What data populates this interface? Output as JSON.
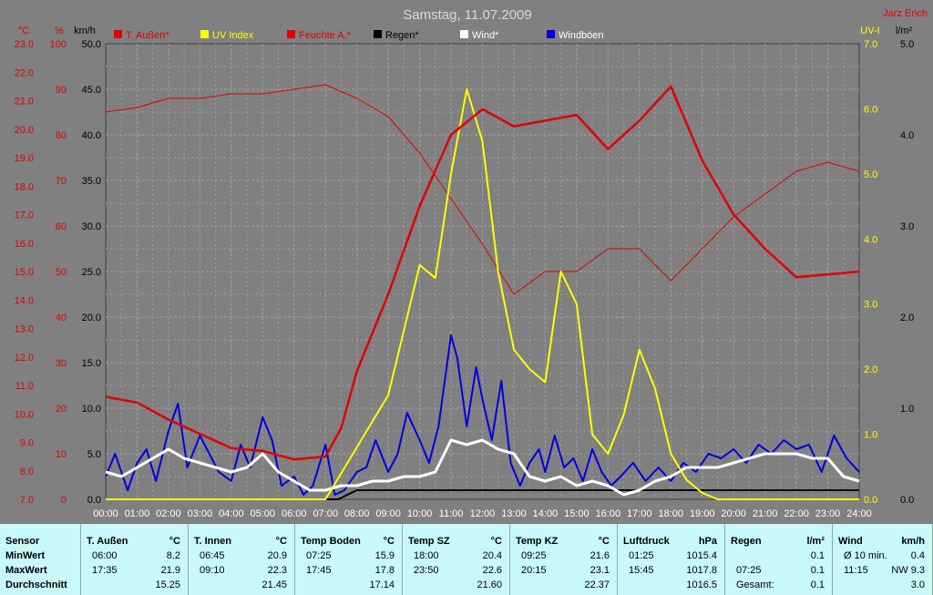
{
  "title": "Samstag, 11.07.2009",
  "author": "Jarz Erich",
  "axis_units": {
    "temp": "°C",
    "hum": "%",
    "wind": "km/h",
    "uv": "UV-I",
    "rain": "l/m²"
  },
  "colors": {
    "temp": "#e00000",
    "hum": "#e00000",
    "uv": "#ffff00",
    "rain": "#000000",
    "wind": "#ffffff",
    "gust": "#0000e0",
    "plot_bg": "#808080",
    "grid": "#a0a0a0"
  },
  "chart_data": {
    "type": "line",
    "x_labels": [
      "00:00",
      "01:00",
      "02:00",
      "03:00",
      "04:00",
      "05:00",
      "06:00",
      "07:00",
      "08:00",
      "09:00",
      "10:00",
      "11:00",
      "12:00",
      "13:00",
      "14:00",
      "15:00",
      "16:00",
      "17:00",
      "18:00",
      "19:00",
      "20:00",
      "21:00",
      "22:00",
      "23:00",
      "24:00"
    ],
    "axes": {
      "temp": {
        "ticks": [
          "7.0",
          "8.0",
          "9.0",
          "10.0",
          "11.0",
          "12.0",
          "13.0",
          "14.0",
          "15.0",
          "16.0",
          "17.0",
          "18.0",
          "19.0",
          "20.0",
          "21.0",
          "22.0",
          "23.0"
        ],
        "range": [
          7,
          23
        ]
      },
      "hum": {
        "ticks": [
          "0",
          "10",
          "20",
          "30",
          "40",
          "50",
          "60",
          "70",
          "80",
          "90",
          "100"
        ],
        "range": [
          0,
          100
        ]
      },
      "wind": {
        "ticks": [
          "0.0",
          "5.0",
          "10.0",
          "15.0",
          "20.0",
          "25.0",
          "30.0",
          "35.0",
          "40.0",
          "45.0",
          "50.0"
        ],
        "range": [
          0,
          50
        ]
      },
      "uv": {
        "ticks": [
          "0.0",
          "1.0",
          "2.0",
          "3.0",
          "4.0",
          "5.0",
          "6.0",
          "7.0"
        ],
        "range": [
          0,
          7
        ]
      },
      "rain": {
        "ticks": [
          "0.0",
          "1.0",
          "2.0",
          "3.0",
          "4.0",
          "5.0"
        ],
        "range": [
          0,
          5
        ]
      }
    },
    "grid": true,
    "legend_position": "top",
    "series": [
      {
        "key": "temp",
        "name": "T. Außen*",
        "axis": "temp",
        "points": [
          [
            0,
            10.6
          ],
          [
            1,
            10.4
          ],
          [
            2,
            9.8
          ],
          [
            3,
            9.3
          ],
          [
            4,
            8.8
          ],
          [
            5,
            8.7
          ],
          [
            6,
            8.4
          ],
          [
            7,
            8.5
          ],
          [
            7.5,
            9.5
          ],
          [
            8,
            11.5
          ],
          [
            9,
            14.2
          ],
          [
            10,
            17.3
          ],
          [
            11,
            19.8
          ],
          [
            12,
            20.7
          ],
          [
            13,
            20.1
          ],
          [
            14,
            20.3
          ],
          [
            15,
            20.5
          ],
          [
            16,
            19.3
          ],
          [
            17,
            20.3
          ],
          [
            18,
            21.5
          ],
          [
            19,
            18.9
          ],
          [
            20,
            17.0
          ],
          [
            21,
            15.8
          ],
          [
            22,
            14.8
          ],
          [
            23,
            14.9
          ],
          [
            24,
            15.0
          ]
        ]
      },
      {
        "key": "hum",
        "name": "Feuchte A.*",
        "axis": "hum",
        "points": [
          [
            0,
            85
          ],
          [
            1,
            86
          ],
          [
            2,
            88
          ],
          [
            3,
            88
          ],
          [
            4,
            89
          ],
          [
            5,
            89
          ],
          [
            6,
            90
          ],
          [
            7,
            91
          ],
          [
            8,
            88
          ],
          [
            9,
            84
          ],
          [
            10,
            76
          ],
          [
            11,
            66
          ],
          [
            12,
            56
          ],
          [
            13,
            45
          ],
          [
            14,
            50
          ],
          [
            15,
            50
          ],
          [
            16,
            55
          ],
          [
            17,
            55
          ],
          [
            18,
            48
          ],
          [
            19,
            55
          ],
          [
            20,
            62
          ],
          [
            21,
            67
          ],
          [
            22,
            72
          ],
          [
            23,
            74
          ],
          [
            24,
            72
          ]
        ]
      },
      {
        "key": "uv",
        "name": "UV Index",
        "axis": "uv",
        "points": [
          [
            0,
            0
          ],
          [
            7,
            0
          ],
          [
            8,
            0.8
          ],
          [
            9,
            1.6
          ],
          [
            10,
            3.6
          ],
          [
            10.5,
            3.4
          ],
          [
            11,
            5.0
          ],
          [
            11.5,
            6.3
          ],
          [
            12,
            5.5
          ],
          [
            12.5,
            3.5
          ],
          [
            13,
            2.3
          ],
          [
            13.5,
            2.0
          ],
          [
            14,
            1.8
          ],
          [
            14.5,
            3.5
          ],
          [
            15,
            3.0
          ],
          [
            15.5,
            1.0
          ],
          [
            16,
            0.7
          ],
          [
            16.5,
            1.3
          ],
          [
            17,
            2.3
          ],
          [
            17.5,
            1.7
          ],
          [
            18,
            0.7
          ],
          [
            18.5,
            0.3
          ],
          [
            19,
            0.1
          ],
          [
            19.5,
            0
          ],
          [
            24,
            0
          ]
        ]
      },
      {
        "key": "rain",
        "name": "Regen*",
        "axis": "rain",
        "points": [
          [
            0,
            0
          ],
          [
            7.4,
            0
          ],
          [
            8,
            0.1
          ],
          [
            24,
            0.1
          ]
        ]
      },
      {
        "key": "wind",
        "name": "Wind*",
        "axis": "wind",
        "points": [
          [
            0,
            3.0
          ],
          [
            0.5,
            2.5
          ],
          [
            1,
            3.5
          ],
          [
            1.5,
            4.5
          ],
          [
            2,
            5.5
          ],
          [
            2.5,
            4.5
          ],
          [
            3,
            4.0
          ],
          [
            3.5,
            3.5
          ],
          [
            4,
            3.0
          ],
          [
            4.5,
            3.5
          ],
          [
            5,
            5.0
          ],
          [
            5.5,
            3.0
          ],
          [
            6,
            2.0
          ],
          [
            6.5,
            1.0
          ],
          [
            7,
            1.0
          ],
          [
            7.5,
            1.5
          ],
          [
            8,
            1.5
          ],
          [
            8.5,
            2.0
          ],
          [
            9,
            2.0
          ],
          [
            9.5,
            2.5
          ],
          [
            10,
            2.5
          ],
          [
            10.5,
            3.0
          ],
          [
            11,
            6.5
          ],
          [
            11.5,
            6.0
          ],
          [
            12,
            6.5
          ],
          [
            12.5,
            5.5
          ],
          [
            13,
            5.0
          ],
          [
            13.5,
            2.5
          ],
          [
            14,
            2.0
          ],
          [
            14.5,
            2.5
          ],
          [
            15,
            1.5
          ],
          [
            15.5,
            2.0
          ],
          [
            16,
            1.5
          ],
          [
            16.5,
            0.5
          ],
          [
            17,
            1.0
          ],
          [
            17.5,
            2.0
          ],
          [
            18,
            2.5
          ],
          [
            18.5,
            3.5
          ],
          [
            19,
            3.5
          ],
          [
            19.5,
            3.5
          ],
          [
            20,
            4.0
          ],
          [
            20.5,
            4.5
          ],
          [
            21,
            5.0
          ],
          [
            21.5,
            5.0
          ],
          [
            22,
            5.0
          ],
          [
            22.5,
            4.5
          ],
          [
            23,
            4.5
          ],
          [
            23.5,
            2.5
          ],
          [
            24,
            2.0
          ]
        ]
      },
      {
        "key": "gust",
        "name": "Windböen",
        "axis": "wind",
        "points": [
          [
            0,
            2.5
          ],
          [
            0.3,
            5.0
          ],
          [
            0.7,
            1.0
          ],
          [
            1,
            4.0
          ],
          [
            1.3,
            5.5
          ],
          [
            1.6,
            2.0
          ],
          [
            2,
            7.5
          ],
          [
            2.3,
            10.5
          ],
          [
            2.6,
            3.5
          ],
          [
            3,
            7.0
          ],
          [
            3.3,
            5.0
          ],
          [
            3.6,
            3.0
          ],
          [
            4,
            2.0
          ],
          [
            4.3,
            6.0
          ],
          [
            4.6,
            3.5
          ],
          [
            5,
            9.0
          ],
          [
            5.3,
            6.5
          ],
          [
            5.6,
            1.5
          ],
          [
            6,
            2.5
          ],
          [
            6.3,
            0.5
          ],
          [
            6.6,
            1.5
          ],
          [
            7,
            6.0
          ],
          [
            7.3,
            0.5
          ],
          [
            7.6,
            1.0
          ],
          [
            8,
            3.0
          ],
          [
            8.3,
            3.5
          ],
          [
            8.6,
            6.5
          ],
          [
            9,
            3.0
          ],
          [
            9.3,
            5.0
          ],
          [
            9.6,
            9.5
          ],
          [
            10,
            6.5
          ],
          [
            10.3,
            4.0
          ],
          [
            10.6,
            8.0
          ],
          [
            11,
            18.0
          ],
          [
            11.2,
            15.5
          ],
          [
            11.5,
            8.0
          ],
          [
            11.8,
            14.5
          ],
          [
            12,
            11.0
          ],
          [
            12.3,
            6.5
          ],
          [
            12.6,
            13.0
          ],
          [
            12.9,
            4.0
          ],
          [
            13.2,
            1.5
          ],
          [
            13.5,
            4.0
          ],
          [
            13.8,
            5.5
          ],
          [
            14,
            3.0
          ],
          [
            14.3,
            7.0
          ],
          [
            14.6,
            3.5
          ],
          [
            14.9,
            4.5
          ],
          [
            15.2,
            2.0
          ],
          [
            15.5,
            5.5
          ],
          [
            15.8,
            3.0
          ],
          [
            16.1,
            1.5
          ],
          [
            16.4,
            2.5
          ],
          [
            16.8,
            4.0
          ],
          [
            17.2,
            2.0
          ],
          [
            17.6,
            3.5
          ],
          [
            18,
            2.0
          ],
          [
            18.4,
            4.0
          ],
          [
            18.8,
            3.0
          ],
          [
            19.2,
            5.0
          ],
          [
            19.6,
            4.5
          ],
          [
            20,
            5.5
          ],
          [
            20.4,
            4.0
          ],
          [
            20.8,
            6.0
          ],
          [
            21.2,
            5.0
          ],
          [
            21.6,
            6.5
          ],
          [
            22,
            5.5
          ],
          [
            22.4,
            6.0
          ],
          [
            22.8,
            3.0
          ],
          [
            23.2,
            7.0
          ],
          [
            23.6,
            4.5
          ],
          [
            24,
            3.0
          ]
        ]
      }
    ]
  },
  "stats": {
    "row_labels": {
      "header": "Sensor",
      "min": "MinWert",
      "max": "MaxWert",
      "avg": "Durchschnitt"
    },
    "sections": [
      {
        "title": "T. Außen",
        "unit": "°C",
        "min_time": "06:00",
        "min_value": "8.2",
        "max_time": "17:35",
        "max_value": "21.9",
        "avg": "15.25"
      },
      {
        "title": "T. Innen",
        "unit": "°C",
        "min_time": "06:45",
        "min_value": "20.9",
        "max_time": "09:10",
        "max_value": "22.3",
        "avg": "21.45"
      },
      {
        "title": "Temp Boden",
        "unit": "°C",
        "min_time": "07:25",
        "min_value": "15.9",
        "max_time": "17:45",
        "max_value": "17.8",
        "avg": "17.14"
      },
      {
        "title": "Temp SZ",
        "unit": "°C",
        "min_time": "18:00",
        "min_value": "20.4",
        "max_time": "23:50",
        "max_value": "22.6",
        "avg": "21.60"
      },
      {
        "title": "Temp KZ",
        "unit": "°C",
        "min_time": "09:25",
        "min_value": "21.6",
        "max_time": "20:15",
        "max_value": "23.1",
        "avg": "22.37"
      },
      {
        "title": "Luftdruck",
        "unit": "hPa",
        "min_time": "01:25",
        "min_value": "1015.4",
        "max_time": "15:45",
        "max_value": "1017.8",
        "avg": "1016.5"
      },
      {
        "title": "Regen",
        "unit": "l/m²",
        "min_time": "",
        "min_value": "0.1",
        "max_time": "07:25",
        "max_value": "0.1",
        "avg_label": "Gesamt:",
        "avg": "0.1"
      },
      {
        "title": "Wind",
        "unit": "km/h",
        "min_time": "Ø 10 min.",
        "min_value": "0.4",
        "max_time": "11:15",
        "max_value": "NW 9.3",
        "avg": "3.0"
      }
    ]
  }
}
